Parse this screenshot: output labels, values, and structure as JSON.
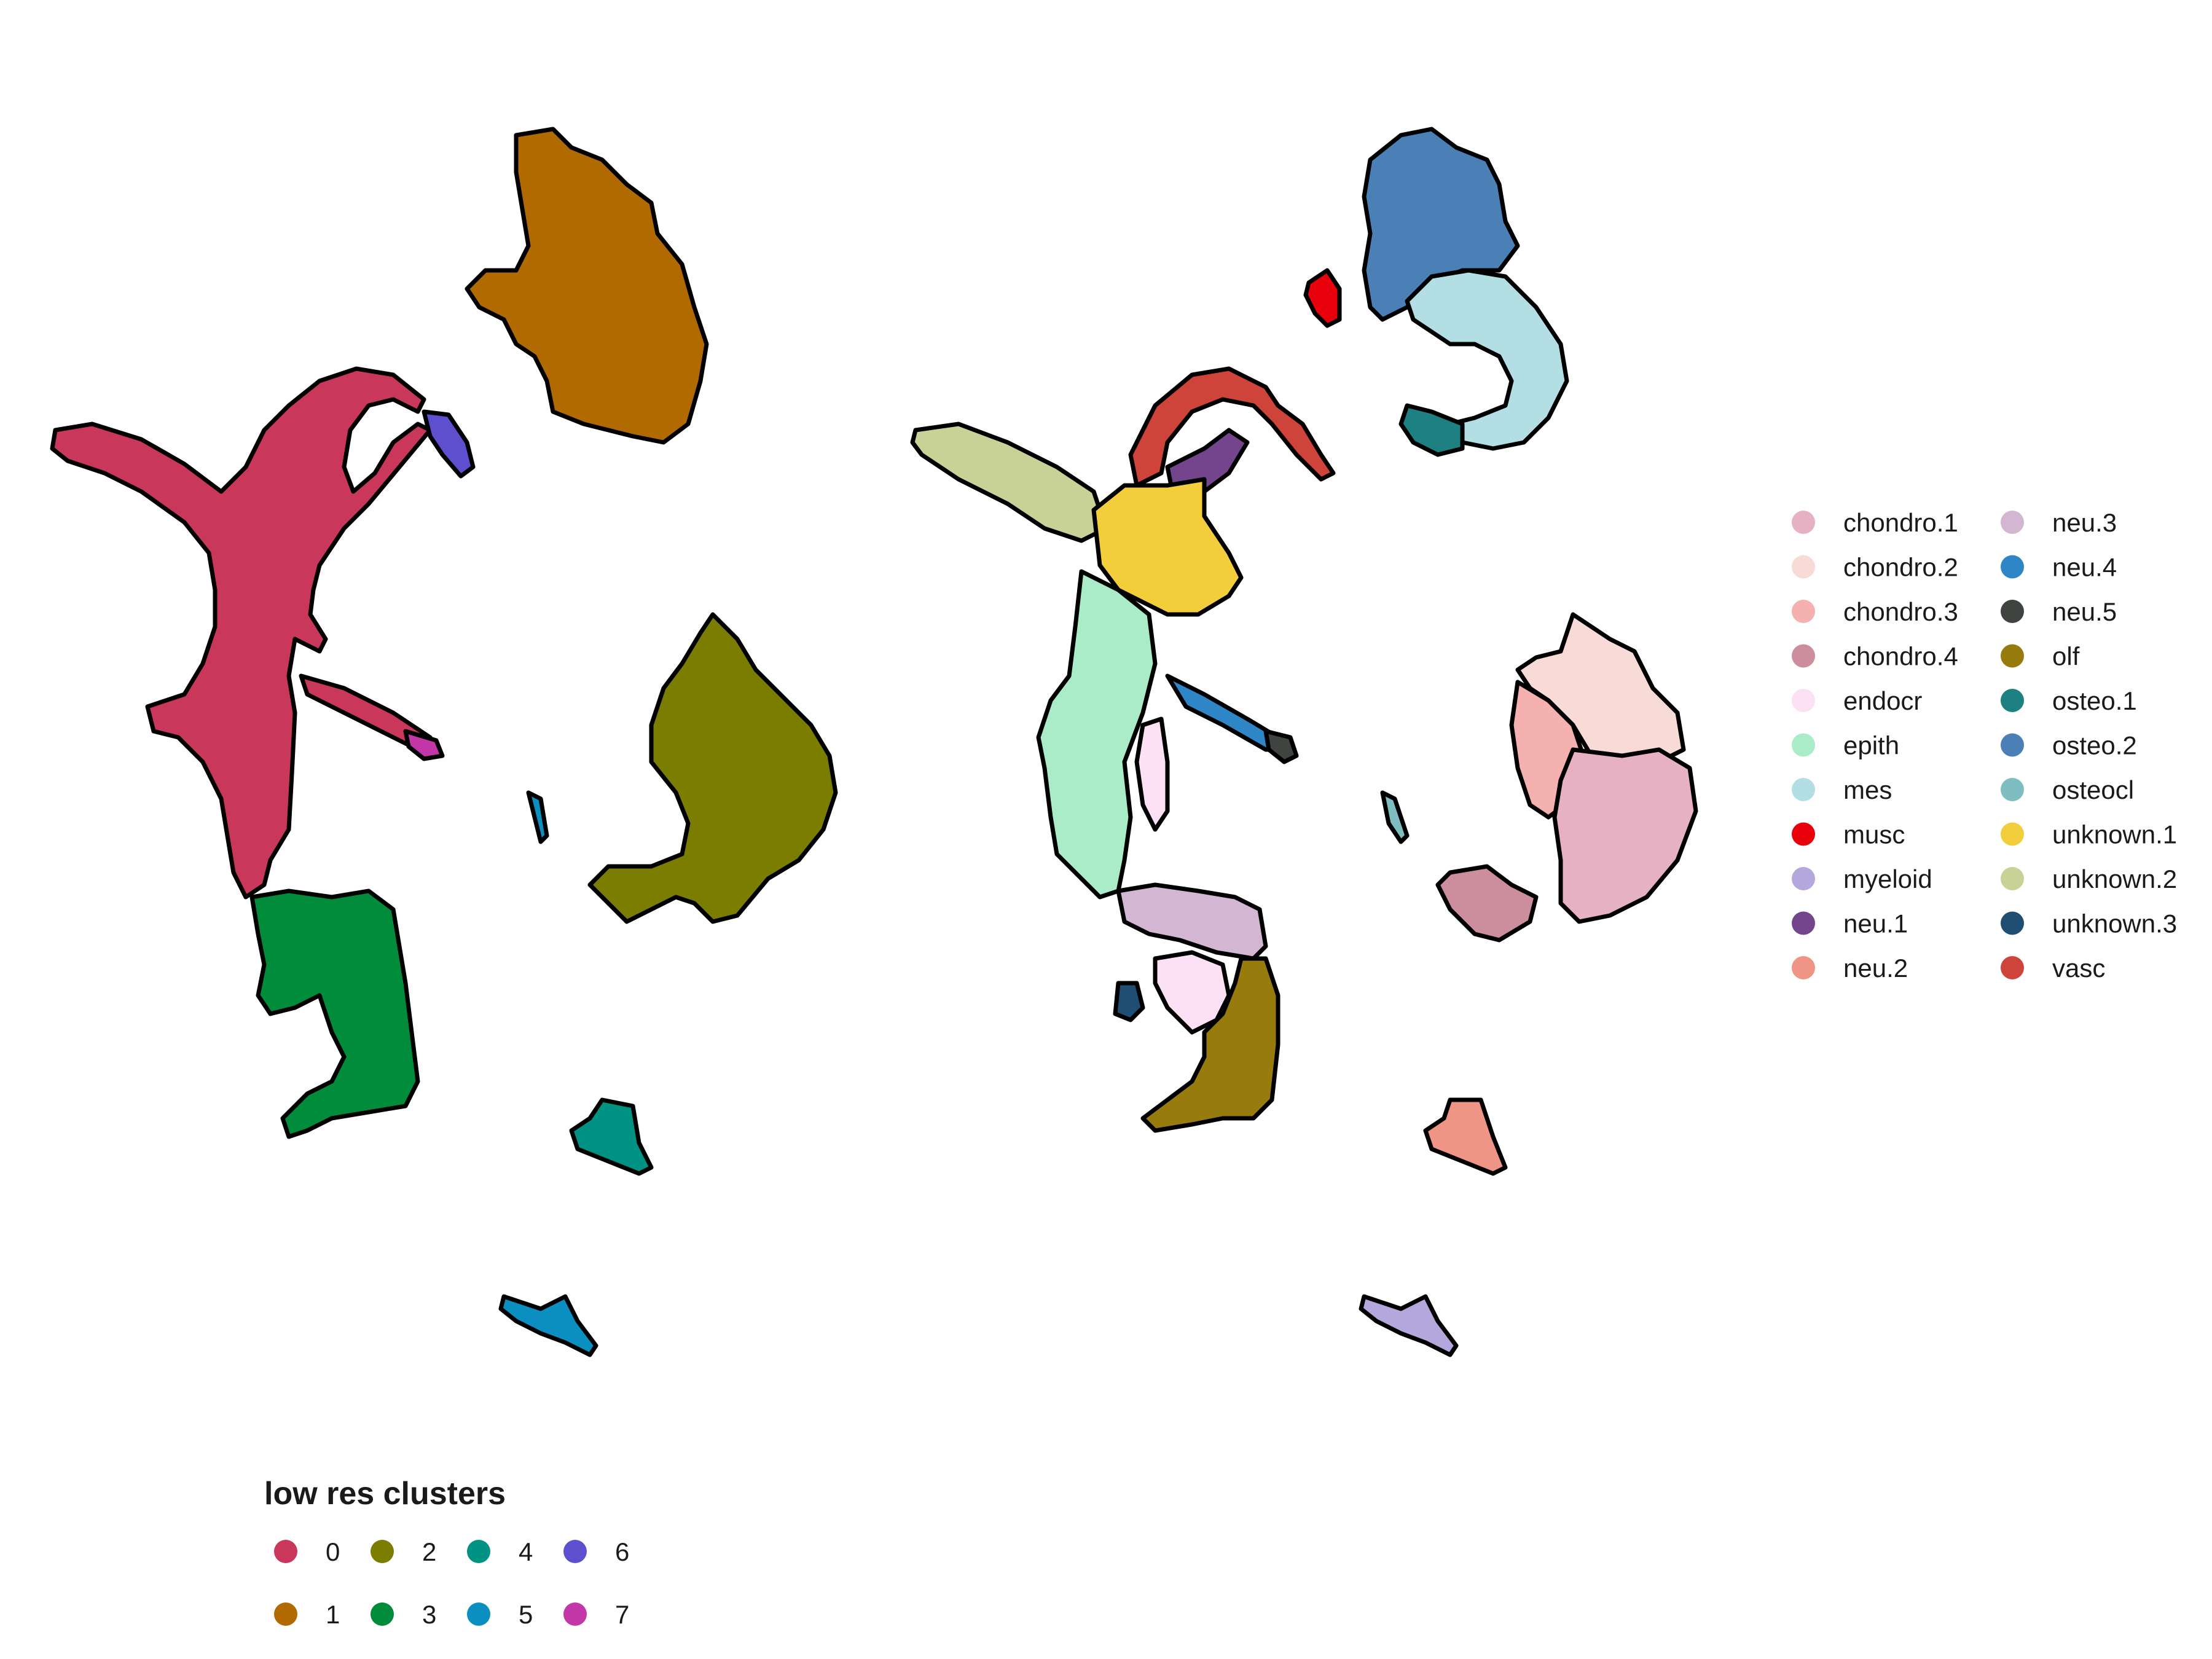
{
  "chart_data": [
    {
      "type": "scatter",
      "title": "",
      "xlabel": "",
      "ylabel": "",
      "grid": false,
      "legend_title": "low res clusters",
      "legend_position": "bottom-left",
      "series": [
        {
          "name": "0",
          "color": "#C9375A"
        },
        {
          "name": "1",
          "color": "#B06A00"
        },
        {
          "name": "2",
          "color": "#7A7D00"
        },
        {
          "name": "3",
          "color": "#008C3A"
        },
        {
          "name": "4",
          "color": "#009282"
        },
        {
          "name": "5",
          "color": "#0A8FC0"
        },
        {
          "name": "6",
          "color": "#5E4FCF"
        },
        {
          "name": "7",
          "color": "#C236A8"
        }
      ]
    },
    {
      "type": "scatter",
      "title": "",
      "xlabel": "",
      "ylabel": "",
      "grid": false,
      "legend_title": "",
      "legend_position": "right",
      "series": [
        {
          "name": "chondro.1",
          "color": "#E6B1C3"
        },
        {
          "name": "chondro.2",
          "color": "#F8DAD6"
        },
        {
          "name": "chondro.3",
          "color": "#F5B0B0"
        },
        {
          "name": "chondro.4",
          "color": "#CC8E9C"
        },
        {
          "name": "endocr",
          "color": "#FCE0F6"
        },
        {
          "name": "epith",
          "color": "#AAEBC8"
        },
        {
          "name": "mes",
          "color": "#B2DEE4"
        },
        {
          "name": "musc",
          "color": "#E8000B"
        },
        {
          "name": "myeloid",
          "color": "#B4A7DC"
        },
        {
          "name": "neu.1",
          "color": "#74448C"
        },
        {
          "name": "neu.2",
          "color": "#EE9585"
        },
        {
          "name": "neu.3",
          "color": "#D2B6D2"
        },
        {
          "name": "neu.4",
          "color": "#2F86C6"
        },
        {
          "name": "neu.5",
          "color": "#3F4441"
        },
        {
          "name": "olf",
          "color": "#977B0D"
        },
        {
          "name": "osteo.1",
          "color": "#1E8080"
        },
        {
          "name": "osteo.2",
          "color": "#4A80B5"
        },
        {
          "name": "osteocl",
          "color": "#7EBDC0"
        },
        {
          "name": "unknown.1",
          "color": "#F3CE3C"
        },
        {
          "name": "unknown.2",
          "color": "#C8D196"
        },
        {
          "name": "unknown.3",
          "color": "#1F4E72"
        },
        {
          "name": "vasc",
          "color": "#CF443A"
        }
      ]
    }
  ]
}
